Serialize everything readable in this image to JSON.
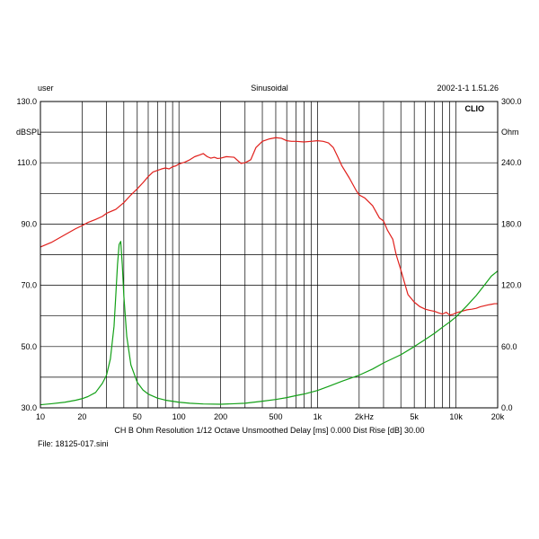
{
  "header": {
    "left": "user",
    "center": "Sinusoidal",
    "right": "2002-1-1 1.51.26"
  },
  "brand": "CLIO",
  "footer": {
    "settings": "CH B   Ohm   Resolution 1/12 Octave   Unsmoothed   Delay [ms] 0.000   Dist Rise [dB] 30.00",
    "file": "File: 18125-017.sini"
  },
  "chart_data": {
    "type": "line",
    "x_scale": "log",
    "xlim": [
      10,
      20000
    ],
    "x_ticks": [
      {
        "value": 10,
        "label": "10"
      },
      {
        "value": 20,
        "label": "20"
      },
      {
        "value": 50,
        "label": "50"
      },
      {
        "value": 100,
        "label": "100"
      },
      {
        "value": 200,
        "label": "200"
      },
      {
        "value": 500,
        "label": "500"
      },
      {
        "value": 1000,
        "label": "1k"
      },
      {
        "value": 2000,
        "label": "2k"
      },
      {
        "value": 5000,
        "label": "5k"
      },
      {
        "value": 10000,
        "label": "10k"
      },
      {
        "value": 20000,
        "label": "20k"
      }
    ],
    "x_unit_label": "Hz",
    "y_left": {
      "label": "dBSPL",
      "ylim": [
        30,
        130
      ],
      "ticks": [
        {
          "value": 30,
          "label": "30.0"
        },
        {
          "value": 50,
          "label": "50.0"
        },
        {
          "value": 70,
          "label": "70.0"
        },
        {
          "value": 90,
          "label": "90.0"
        },
        {
          "value": 110,
          "label": "110.0"
        },
        {
          "value": 130,
          "label": "130.0"
        }
      ]
    },
    "y_right": {
      "label": "Ohm",
      "ylim": [
        0,
        300
      ],
      "ticks": [
        {
          "value": 0,
          "label": "0.0"
        },
        {
          "value": 60,
          "label": "60.0"
        },
        {
          "value": 120,
          "label": "120.0"
        },
        {
          "value": 180,
          "label": "180.0"
        },
        {
          "value": 240,
          "label": "240.0"
        },
        {
          "value": 300,
          "label": "300.0"
        }
      ]
    },
    "grid": true,
    "series": [
      {
        "axis": "left",
        "color": "#e0201c",
        "x": [
          10,
          12,
          15,
          18,
          20,
          22,
          25,
          28,
          30,
          35,
          40,
          45,
          50,
          55,
          60,
          65,
          70,
          75,
          80,
          85,
          90,
          95,
          100,
          110,
          120,
          130,
          140,
          150,
          160,
          170,
          180,
          190,
          200,
          220,
          250,
          280,
          300,
          330,
          360,
          400,
          450,
          500,
          550,
          600,
          650,
          700,
          800,
          900,
          1000,
          1100,
          1200,
          1300,
          1400,
          1500,
          1700,
          1900,
          2000,
          2200,
          2500,
          2800,
          3000,
          3200,
          3500,
          3700,
          4000,
          4500,
          5000,
          5500,
          6000,
          6500,
          7000,
          7500,
          8000,
          8500,
          9000,
          9500,
          10000,
          11000,
          12000,
          13000,
          14000,
          15000,
          16000,
          17000,
          18000,
          19000,
          20000
        ],
        "y": [
          82.5,
          84.0,
          86.5,
          88.5,
          89.5,
          90.5,
          91.5,
          92.5,
          93.5,
          94.8,
          97.0,
          99.5,
          101.5,
          103.5,
          105.5,
          107.0,
          107.5,
          108.0,
          108.3,
          108.0,
          108.7,
          109.0,
          109.6,
          110.2,
          111.0,
          112.0,
          112.5,
          113.0,
          112.0,
          111.5,
          111.8,
          111.4,
          111.5,
          112.0,
          111.8,
          109.8,
          110.0,
          111.0,
          115.0,
          117.0,
          117.8,
          118.2,
          118.0,
          117.2,
          117.0,
          117.0,
          116.8,
          117.0,
          117.2,
          117.0,
          116.5,
          115.0,
          112.0,
          109.0,
          105.0,
          101.0,
          99.5,
          98.5,
          96.0,
          92.0,
          91.0,
          88.0,
          85.0,
          80.0,
          75.0,
          67.0,
          64.5,
          63.0,
          62.2,
          61.8,
          61.5,
          61.0,
          60.6,
          61.2,
          60.3,
          60.5,
          61.0,
          61.5,
          62.0,
          62.2,
          62.5,
          63.0,
          63.3,
          63.6,
          63.8,
          64.0,
          64.0
        ]
      },
      {
        "axis": "right",
        "color": "#13a017",
        "x": [
          10,
          12,
          15,
          18,
          20,
          22,
          25,
          28,
          30,
          32,
          34,
          35,
          36,
          37,
          38,
          39,
          40,
          42,
          45,
          50,
          55,
          60,
          70,
          80,
          100,
          120,
          150,
          200,
          250,
          300,
          400,
          500,
          600,
          700,
          800,
          1000,
          1200,
          1500,
          2000,
          2500,
          3000,
          4000,
          5000,
          6000,
          7000,
          8000,
          9000,
          10000,
          12000,
          14000,
          16000,
          18000,
          20000
        ],
        "y": [
          3.0,
          4.0,
          5.5,
          7.5,
          9.0,
          11.0,
          15.0,
          24.0,
          32.0,
          48.0,
          80.0,
          110.0,
          140.0,
          160.0,
          163.0,
          140.0,
          110.0,
          70.0,
          42.0,
          25.0,
          17.5,
          13.5,
          9.5,
          7.5,
          5.5,
          4.5,
          3.8,
          3.5,
          4.0,
          4.5,
          6.5,
          8.2,
          10.0,
          12.0,
          13.5,
          17.0,
          21.0,
          26.0,
          32.0,
          38.0,
          44.0,
          52.0,
          60.0,
          67.0,
          73.0,
          79.0,
          84.0,
          89.0,
          100.0,
          110.0,
          120.0,
          129.0,
          134.0
        ]
      }
    ]
  }
}
